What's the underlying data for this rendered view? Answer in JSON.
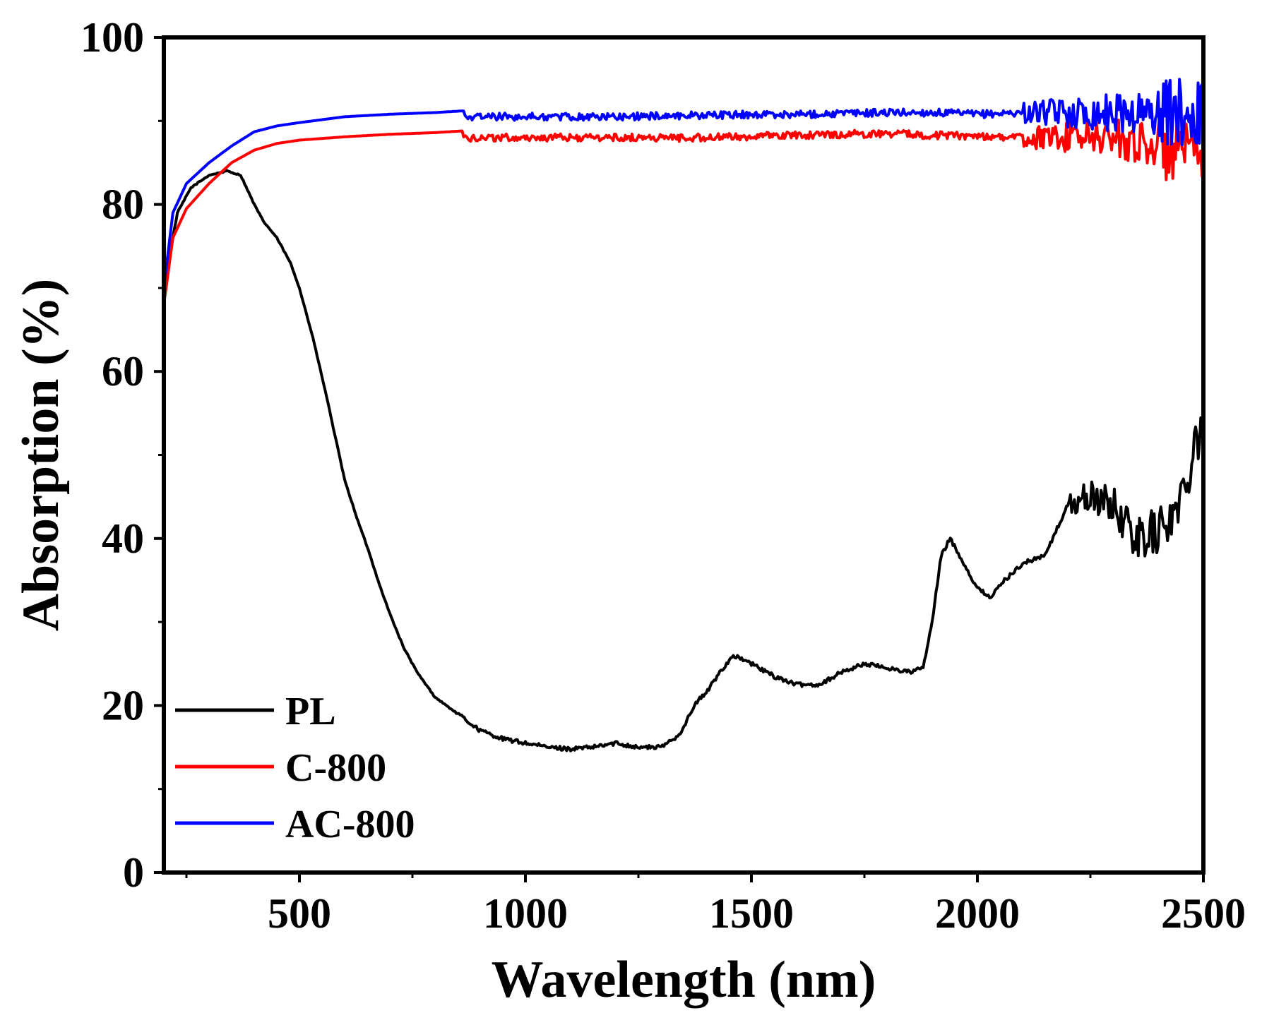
{
  "chart_data": {
    "type": "line",
    "title": "",
    "xlabel": "Wavelength (nm)",
    "ylabel": "Absorption (%)",
    "xlim": [
      200,
      2500
    ],
    "ylim": [
      0,
      100
    ],
    "xticks": [
      500,
      1000,
      1500,
      2000,
      2500
    ],
    "xtick_labels": [
      "500",
      "1000",
      "1500",
      "2000",
      "2500"
    ],
    "yticks": [
      0,
      20,
      40,
      60,
      80,
      100
    ],
    "ytick_labels": [
      "0",
      "20",
      "40",
      "60",
      "80",
      "100"
    ],
    "grid": false,
    "legend_position": "bottom-left",
    "series": [
      {
        "name": "PL",
        "color": "#000000",
        "x": [
          200,
          230,
          260,
          300,
          340,
          370,
          400,
          420,
          450,
          480,
          500,
          530,
          560,
          600,
          630,
          650,
          680,
          700,
          730,
          760,
          800,
          850,
          900,
          950,
          1000,
          1050,
          1100,
          1150,
          1200,
          1250,
          1300,
          1340,
          1360,
          1380,
          1400,
          1430,
          1460,
          1500,
          1550,
          1600,
          1650,
          1700,
          1750,
          1800,
          1850,
          1880,
          1900,
          1920,
          1940,
          1970,
          2000,
          2030,
          2060,
          2100,
          2150,
          2200,
          2250,
          2300,
          2350,
          2400,
          2450,
          2480,
          2500
        ],
        "y": [
          70,
          79,
          82,
          83.5,
          84,
          83.5,
          80,
          78,
          76,
          73,
          70,
          64,
          57,
          47,
          42,
          39,
          34,
          31,
          27,
          24,
          21,
          19,
          17,
          16,
          15.5,
          15,
          14.8,
          15,
          15.5,
          15,
          15,
          16.5,
          18.5,
          20.5,
          21.5,
          24,
          26,
          25,
          23.5,
          22.5,
          22.5,
          24,
          25,
          24.5,
          24,
          24.5,
          30,
          38,
          40,
          37,
          34,
          33,
          35,
          37,
          38,
          44,
          45,
          44,
          40,
          41,
          44,
          52,
          54
        ]
      },
      {
        "name": "C-800",
        "color": "#ff0000",
        "x": [
          200,
          220,
          250,
          300,
          350,
          400,
          450,
          500,
          600,
          700,
          800,
          860,
          870,
          900,
          1000,
          1200,
          1400,
          1600,
          1800,
          1900,
          2000,
          2100,
          2200,
          2300,
          2400,
          2450,
          2500
        ],
        "y": [
          68,
          76,
          79.5,
          82.5,
          85,
          86.5,
          87.3,
          87.7,
          88.1,
          88.4,
          88.6,
          88.8,
          88,
          88,
          88,
          88,
          88,
          88.3,
          88.5,
          88.3,
          88.2,
          88,
          88,
          88,
          87,
          86,
          85
        ]
      },
      {
        "name": "AC-800",
        "color": "#0000ff",
        "x": [
          200,
          220,
          250,
          300,
          350,
          400,
          450,
          500,
          600,
          700,
          800,
          860,
          870,
          900,
          1000,
          1200,
          1400,
          1600,
          1800,
          1900,
          2000,
          2100,
          2200,
          2300,
          2400,
          2450,
          2500
        ],
        "y": [
          70,
          79,
          82.5,
          85,
          87,
          88.7,
          89.4,
          89.8,
          90.5,
          90.8,
          91,
          91.2,
          90.5,
          90.5,
          90.5,
          90.5,
          90.7,
          90.8,
          91,
          91,
          90.8,
          91,
          91,
          91,
          91,
          91,
          91
        ]
      }
    ]
  }
}
